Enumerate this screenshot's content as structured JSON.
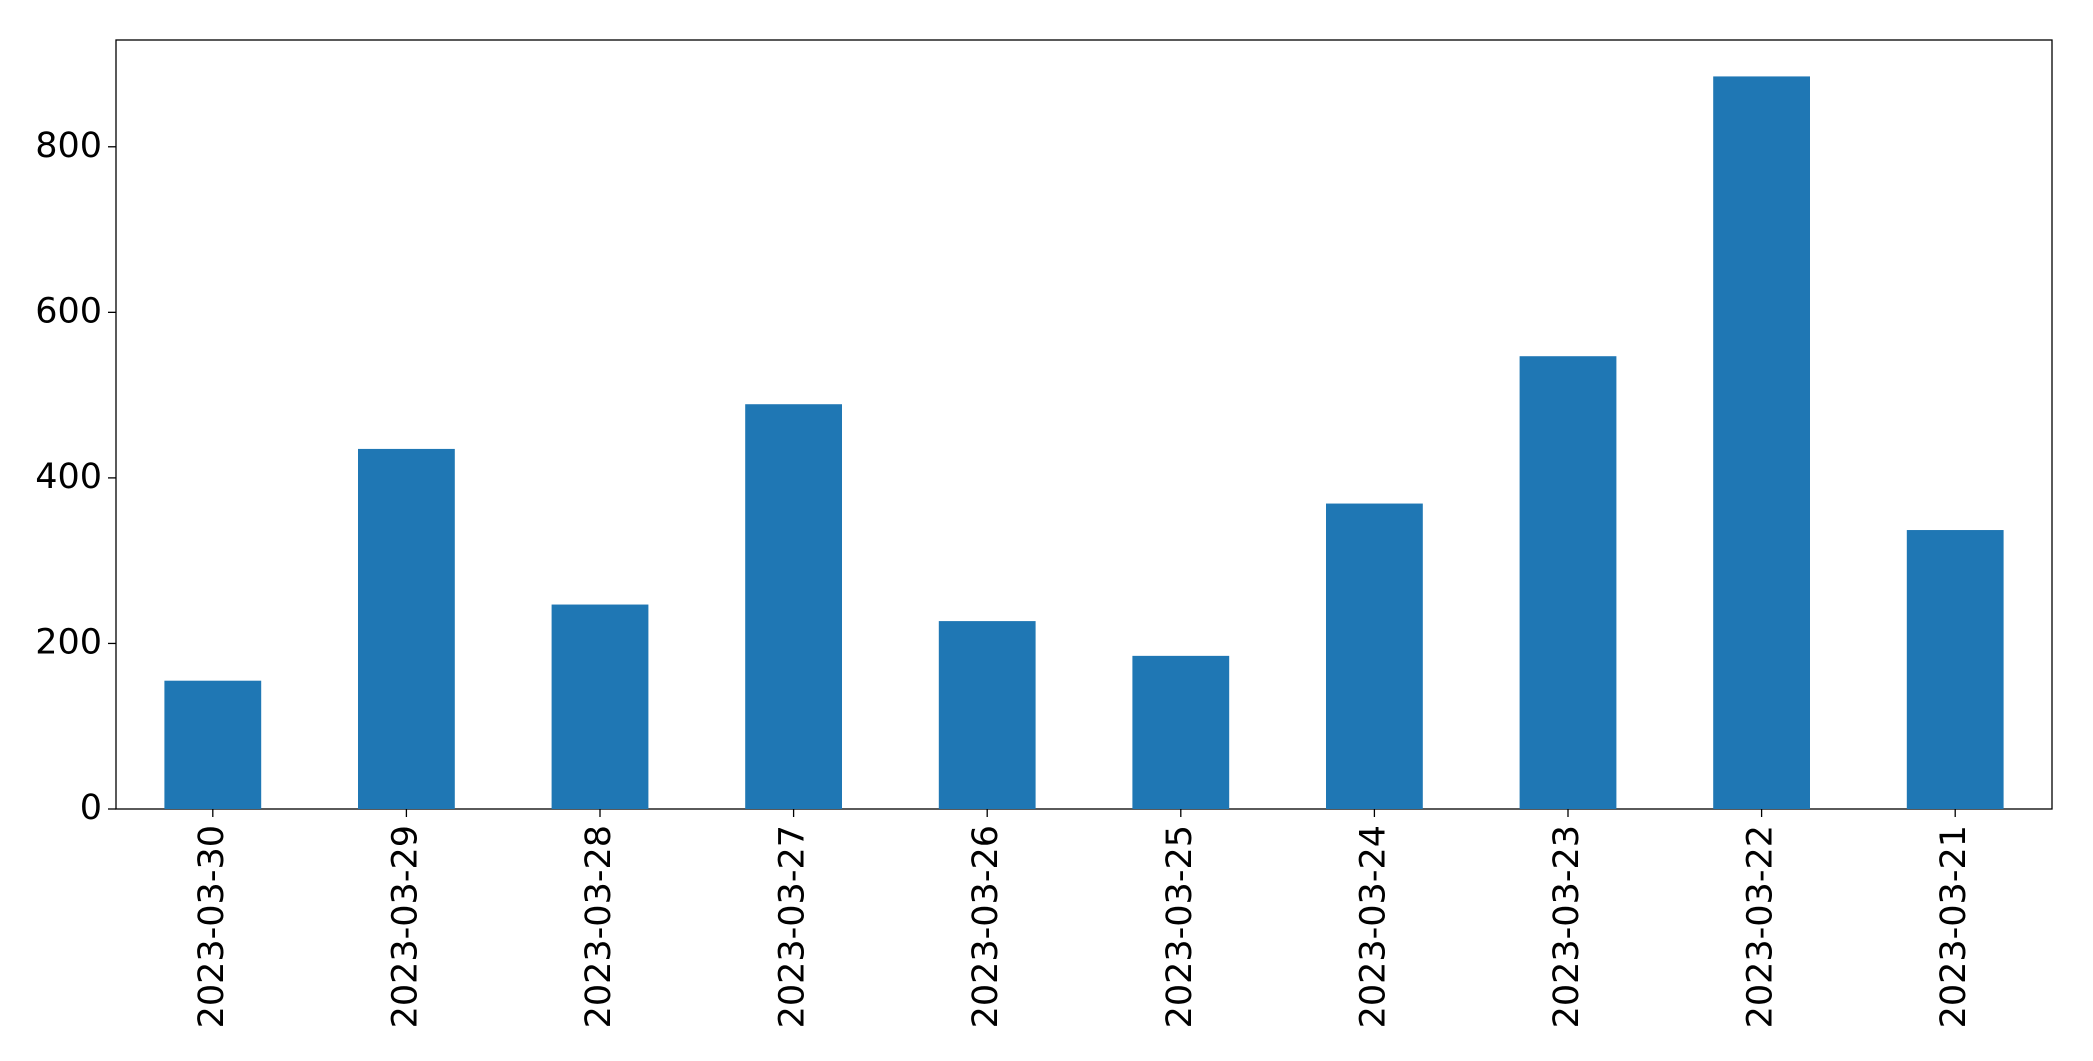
{
  "chart_data": {
    "type": "bar",
    "categories": [
      "2023-03-30",
      "2023-03-29",
      "2023-03-28",
      "2023-03-27",
      "2023-03-26",
      "2023-03-25",
      "2023-03-24",
      "2023-03-23",
      "2023-03-22",
      "2023-03-21"
    ],
    "values": [
      155,
      435,
      247,
      489,
      227,
      185,
      369,
      547,
      885,
      337
    ],
    "color": "#1f77b4",
    "ylim": [
      0,
      929
    ],
    "yticks": [
      0,
      200,
      400,
      600,
      800
    ],
    "grid": false
  }
}
